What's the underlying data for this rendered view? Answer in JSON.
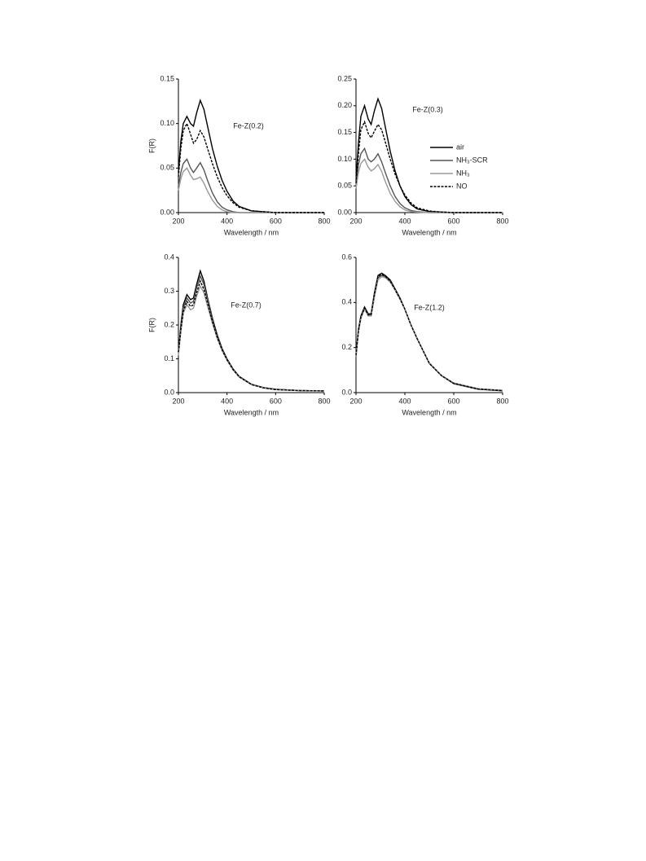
{
  "chart_data": [
    {
      "type": "line",
      "title": "Fe-Z(0.2)",
      "x_label": "Wavelength / nm",
      "y_label": "F(R)",
      "x": [
        200,
        210,
        220,
        235,
        250,
        262,
        275,
        290,
        305,
        320,
        340,
        360,
        380,
        400,
        425,
        450,
        500,
        550,
        600,
        700,
        800
      ],
      "xlim": [
        200,
        800
      ],
      "xticks": [
        200,
        400,
        600,
        800
      ],
      "ylim": [
        0,
        0.15
      ],
      "yticks": [
        {
          "value": 0,
          "label": "0.00"
        },
        0.05,
        {
          "value": 0.1,
          "label": "0.10"
        },
        0.15
      ],
      "series": [
        {
          "color": "#000000",
          "line_style": "solid",
          "values": [
            0.045,
            0.08,
            0.1,
            0.108,
            0.1,
            0.097,
            0.112,
            0.126,
            0.116,
            0.097,
            0.072,
            0.052,
            0.036,
            0.024,
            0.013,
            0.007,
            0.002,
            0.001,
            0,
            0,
            0
          ]
        },
        {
          "color": "#555555",
          "line_style": "solid",
          "values": [
            0.03,
            0.045,
            0.055,
            0.06,
            0.05,
            0.045,
            0.05,
            0.056,
            0.048,
            0.036,
            0.022,
            0.012,
            0.006,
            0.003,
            0.001,
            0,
            0,
            0,
            0,
            0,
            0
          ]
        },
        {
          "color": "#999999",
          "line_style": "solid",
          "values": [
            0.025,
            0.038,
            0.046,
            0.05,
            0.042,
            0.037,
            0.038,
            0.04,
            0.033,
            0.024,
            0.014,
            0.007,
            0.003,
            0.001,
            0,
            0,
            0,
            0,
            0,
            0,
            0
          ]
        },
        {
          "color": "#000000",
          "line_style": "dashed",
          "values": [
            0.04,
            0.072,
            0.092,
            0.1,
            0.088,
            0.078,
            0.082,
            0.092,
            0.085,
            0.072,
            0.055,
            0.04,
            0.028,
            0.019,
            0.011,
            0.006,
            0.002,
            0.001,
            0,
            0,
            0
          ]
        }
      ]
    },
    {
      "type": "line",
      "title": "Fe-Z(0.3)",
      "x_label": "Wavelength / nm",
      "legend": "right",
      "x": [
        200,
        210,
        220,
        235,
        250,
        262,
        275,
        290,
        305,
        320,
        340,
        360,
        380,
        400,
        425,
        450,
        500,
        550,
        600,
        700,
        800
      ],
      "xlim": [
        200,
        800
      ],
      "xticks": [
        200,
        400,
        600,
        800
      ],
      "ylim": [
        0,
        0.25
      ],
      "yticks": [
        {
          "value": 0,
          "label": "0.00"
        },
        0.05,
        {
          "value": 0.1,
          "label": "0.10"
        },
        0.15,
        {
          "value": 0.2,
          "label": "0.20"
        },
        0.25
      ],
      "series": [
        {
          "name": "air",
          "color": "#000000",
          "line_style": "solid",
          "values": [
            0.06,
            0.13,
            0.18,
            0.2,
            0.175,
            0.165,
            0.19,
            0.213,
            0.195,
            0.16,
            0.115,
            0.078,
            0.05,
            0.03,
            0.015,
            0.007,
            0.002,
            0.001,
            0,
            0,
            0
          ]
        },
        {
          "name": "NH₃-SCR",
          "color": "#555555",
          "line_style": "solid",
          "values": [
            0.05,
            0.09,
            0.11,
            0.12,
            0.1,
            0.095,
            0.1,
            0.11,
            0.095,
            0.075,
            0.05,
            0.03,
            0.017,
            0.009,
            0.004,
            0.002,
            0,
            0,
            0,
            0,
            0
          ]
        },
        {
          "name": "NH₃",
          "color": "#999999",
          "line_style": "solid",
          "values": [
            0.045,
            0.075,
            0.092,
            0.1,
            0.085,
            0.078,
            0.082,
            0.09,
            0.077,
            0.058,
            0.036,
            0.021,
            0.011,
            0.005,
            0.002,
            0.001,
            0,
            0,
            0,
            0,
            0
          ]
        },
        {
          "name": "NO",
          "color": "#000000",
          "line_style": "dashed",
          "values": [
            0.055,
            0.11,
            0.155,
            0.17,
            0.148,
            0.14,
            0.152,
            0.165,
            0.155,
            0.132,
            0.1,
            0.072,
            0.05,
            0.033,
            0.018,
            0.009,
            0.003,
            0.001,
            0,
            0,
            0
          ]
        }
      ]
    },
    {
      "type": "line",
      "title": "Fe-Z(0.7)",
      "x_label": "Wavelength / nm",
      "y_label": "F(R)",
      "x": [
        200,
        210,
        220,
        235,
        250,
        262,
        275,
        290,
        305,
        320,
        340,
        360,
        380,
        400,
        425,
        450,
        500,
        550,
        600,
        700,
        800
      ],
      "xlim": [
        200,
        800
      ],
      "xticks": [
        200,
        400,
        600,
        800
      ],
      "ylim": [
        0,
        0.4
      ],
      "yticks": [
        {
          "value": 0,
          "label": "0.0"
        },
        0.1,
        0.2,
        0.3,
        0.4
      ],
      "series": [
        {
          "color": "#000000",
          "line_style": "solid",
          "values": [
            0.12,
            0.2,
            0.26,
            0.29,
            0.275,
            0.28,
            0.32,
            0.36,
            0.33,
            0.28,
            0.22,
            0.17,
            0.13,
            0.1,
            0.07,
            0.048,
            0.025,
            0.015,
            0.01,
            0.006,
            0.005
          ]
        },
        {
          "color": "#555555",
          "line_style": "solid",
          "values": [
            0.12,
            0.19,
            0.25,
            0.28,
            0.265,
            0.27,
            0.31,
            0.345,
            0.32,
            0.275,
            0.215,
            0.165,
            0.127,
            0.098,
            0.068,
            0.047,
            0.024,
            0.014,
            0.009,
            0.006,
            0.005
          ]
        },
        {
          "color": "#999999",
          "line_style": "solid",
          "values": [
            0.11,
            0.18,
            0.235,
            0.26,
            0.245,
            0.25,
            0.285,
            0.315,
            0.295,
            0.255,
            0.205,
            0.16,
            0.124,
            0.096,
            0.067,
            0.046,
            0.024,
            0.014,
            0.009,
            0.006,
            0.005
          ]
        },
        {
          "color": "#000000",
          "line_style": "dashed",
          "values": [
            0.12,
            0.185,
            0.24,
            0.27,
            0.255,
            0.26,
            0.295,
            0.33,
            0.305,
            0.265,
            0.21,
            0.163,
            0.126,
            0.097,
            0.068,
            0.047,
            0.024,
            0.014,
            0.009,
            0.006,
            0.005
          ]
        }
      ]
    },
    {
      "type": "line",
      "title": "Fe-Z(1.2)",
      "x_label": "Wavelength / nm",
      "x": [
        200,
        210,
        220,
        235,
        250,
        262,
        275,
        290,
        305,
        320,
        340,
        360,
        380,
        400,
        425,
        450,
        500,
        550,
        600,
        700,
        800
      ],
      "xlim": [
        200,
        800
      ],
      "xticks": [
        200,
        400,
        600,
        800
      ],
      "ylim": [
        0,
        0.6
      ],
      "yticks": [
        {
          "value": 0,
          "label": "0.0"
        },
        0.2,
        0.4,
        0.6
      ],
      "series": [
        {
          "color": "#000000",
          "line_style": "solid",
          "values": [
            0.17,
            0.28,
            0.34,
            0.38,
            0.35,
            0.35,
            0.44,
            0.52,
            0.53,
            0.52,
            0.5,
            0.46,
            0.42,
            0.37,
            0.3,
            0.24,
            0.13,
            0.075,
            0.04,
            0.015,
            0.008
          ]
        },
        {
          "color": "#555555",
          "line_style": "solid",
          "values": [
            0.16,
            0.27,
            0.33,
            0.375,
            0.345,
            0.345,
            0.43,
            0.51,
            0.52,
            0.515,
            0.495,
            0.455,
            0.415,
            0.37,
            0.3,
            0.24,
            0.13,
            0.075,
            0.042,
            0.017,
            0.009
          ]
        },
        {
          "color": "#999999",
          "line_style": "solid",
          "values": [
            0.16,
            0.27,
            0.33,
            0.37,
            0.34,
            0.34,
            0.42,
            0.5,
            0.515,
            0.51,
            0.49,
            0.455,
            0.415,
            0.37,
            0.3,
            0.24,
            0.132,
            0.077,
            0.043,
            0.018,
            0.01
          ]
        },
        {
          "color": "#000000",
          "line_style": "dashed",
          "values": [
            0.165,
            0.275,
            0.335,
            0.375,
            0.345,
            0.345,
            0.435,
            0.515,
            0.525,
            0.515,
            0.495,
            0.457,
            0.417,
            0.37,
            0.3,
            0.24,
            0.13,
            0.075,
            0.041,
            0.016,
            0.009
          ]
        }
      ]
    }
  ]
}
